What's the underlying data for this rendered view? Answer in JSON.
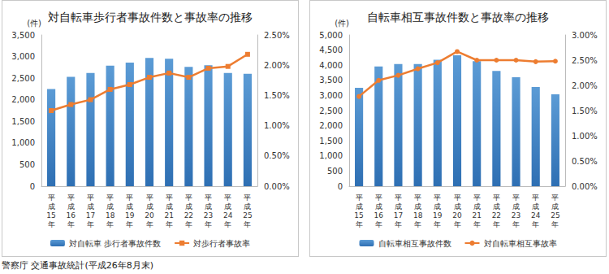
{
  "chart_data": [
    {
      "type": "bar",
      "title": "対自転車歩行者事故件数と事故率の推移",
      "y_label": "(件)",
      "categories": [
        "平成15年",
        "平成16年",
        "平成17年",
        "平成18年",
        "平成19年",
        "平成20年",
        "平成21年",
        "平成22年",
        "平成23年",
        "平成24年",
        "平成25年"
      ],
      "series": [
        {
          "name": "対自転車 歩行者事故件数",
          "type": "bar",
          "color": "#5b9bd5",
          "values": [
            2250,
            2530,
            2620,
            2790,
            2860,
            2970,
            2950,
            2760,
            2800,
            2620,
            2600
          ]
        },
        {
          "name": "対歩行者事故率",
          "type": "line",
          "axis": "y2",
          "color": "#ed7d31",
          "marker": "square",
          "values": [
            1.25,
            1.35,
            1.43,
            1.6,
            1.68,
            1.8,
            1.87,
            1.8,
            1.95,
            1.98,
            2.18
          ]
        }
      ],
      "ylim": [
        0,
        3500
      ],
      "yticks": [
        0,
        500,
        {
          "value": 1000,
          "label": "1,000"
        },
        {
          "value": 1500,
          "label": "1,500"
        },
        {
          "value": 2000,
          "label": "2,000"
        },
        {
          "value": 2500,
          "label": "2,500"
        },
        {
          "value": 3000,
          "label": "3,000"
        },
        {
          "value": 3500,
          "label": "3,500"
        }
      ],
      "y2lim": [
        0,
        2.5
      ],
      "y2ticks": [
        {
          "value": 0,
          "label": "0.00%"
        },
        {
          "value": 0.5,
          "label": "0.50%"
        },
        {
          "value": 1,
          "label": "1.00%"
        },
        {
          "value": 1.5,
          "label": "1.50%"
        },
        {
          "value": 2,
          "label": "2.00%"
        },
        {
          "value": 2.5,
          "label": "2.50%"
        }
      ],
      "grid": false,
      "legend": "bottom"
    },
    {
      "type": "bar",
      "title": "自転車相互事故件数と事故率の推移",
      "y_label": "(件)",
      "categories": [
        "平成15年",
        "平成16年",
        "平成17年",
        "平成18年",
        "平成19年",
        "平成20年",
        "平成21年",
        "平成22年",
        "平成23年",
        "平成24年",
        "平成25年"
      ],
      "series": [
        {
          "name": "自転車相互事故件数",
          "type": "bar",
          "color": "#5b9bd5",
          "values": [
            3250,
            3960,
            4040,
            4040,
            4180,
            4330,
            4130,
            3810,
            3600,
            3280,
            3040
          ]
        },
        {
          "name": "対自転車相互事故率",
          "type": "line",
          "axis": "y2",
          "color": "#ed7d31",
          "marker": "circle",
          "values": [
            1.78,
            2.1,
            2.2,
            2.33,
            2.45,
            2.67,
            2.5,
            2.5,
            2.5,
            2.47,
            2.48
          ]
        }
      ],
      "ylim": [
        0,
        5000
      ],
      "yticks": [
        0,
        500,
        {
          "value": 1000,
          "label": "1,000"
        },
        {
          "value": 1500,
          "label": "1,500"
        },
        {
          "value": 2000,
          "label": "2,000"
        },
        {
          "value": 2500,
          "label": "2,500"
        },
        {
          "value": 3000,
          "label": "3,000"
        },
        {
          "value": 3500,
          "label": "3,500"
        },
        {
          "value": 4000,
          "label": "4,000"
        },
        {
          "value": 4500,
          "label": "4,500"
        },
        {
          "value": 5000,
          "label": "5,000"
        }
      ],
      "y2lim": [
        0,
        3
      ],
      "y2ticks": [
        {
          "value": 0,
          "label": "0.00%"
        },
        {
          "value": 0.5,
          "label": "0.50%"
        },
        {
          "value": 1,
          "label": "1.00%"
        },
        {
          "value": 1.5,
          "label": "1.50%"
        },
        {
          "value": 2,
          "label": "2.00%"
        },
        {
          "value": 2.5,
          "label": "2.50%"
        },
        {
          "value": 3,
          "label": "3.00%"
        }
      ],
      "grid": false,
      "legend": "bottom"
    }
  ],
  "source": "警察庁 交通事故統計(平成26年8月末)"
}
